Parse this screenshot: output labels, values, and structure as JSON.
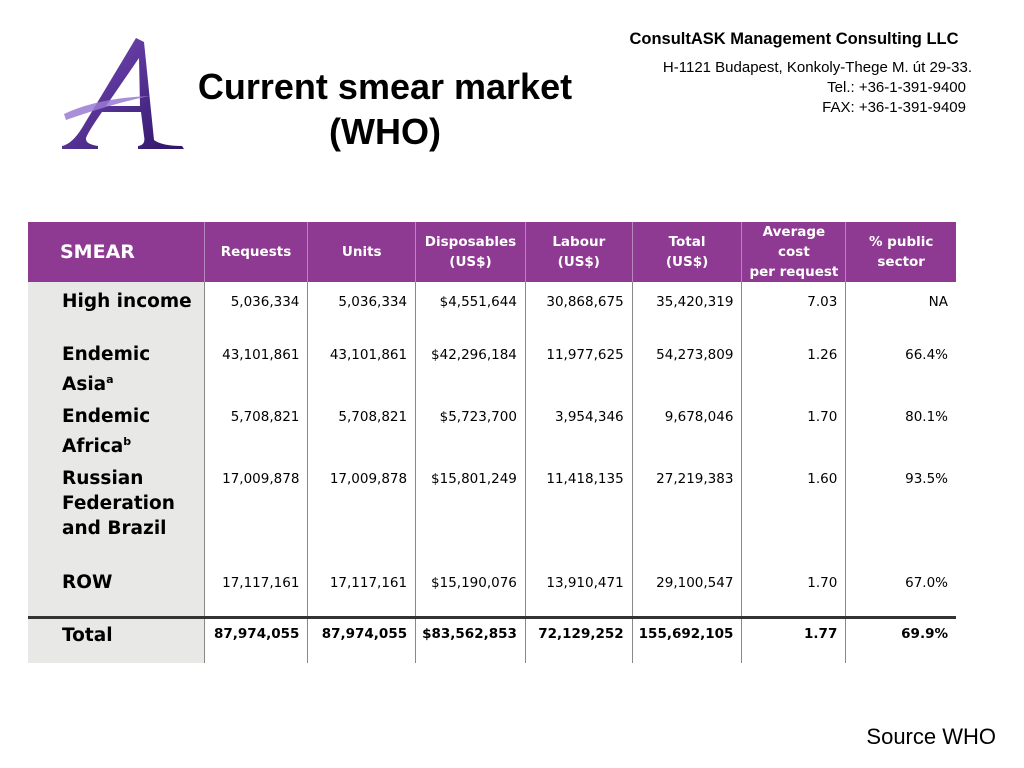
{
  "header": {
    "title_line1": "Current smear market",
    "title_line2": "(WHO)"
  },
  "company": {
    "name": "ConsultASK Management Consulting LLC",
    "address": "H-1121 Budapest, Konkoly-Thege M. út 29-33.",
    "phone": "Tel.:   +36-1-391-9400",
    "fax": "FAX: +36-1-391-9409"
  },
  "table": {
    "headers": {
      "smear": "SMEAR",
      "requests": "Requests",
      "units": "Units",
      "disposables_1": "Disposables",
      "disposables_2": "(US$)",
      "labour": "Labour (US$)",
      "total_1": "Total",
      "total_2": "(US$)",
      "avg_1": "Average cost",
      "avg_2": "per request",
      "public_1": "% public",
      "public_2": "sector"
    },
    "rows": [
      {
        "label": "High income",
        "sup": "",
        "requests": "5,036,334",
        "units": "5,036,334",
        "disposables": "$4,551,644",
        "labour": "30,868,675",
        "total": "35,420,319",
        "avg": "7.03",
        "public": "NA"
      },
      {
        "label": "Endemic Asia",
        "sup": "a",
        "requests": "43,101,861",
        "units": "43,101,861",
        "disposables": "$42,296,184",
        "labour": "11,977,625",
        "total": "54,273,809",
        "avg": "1.26",
        "public": "66.4%"
      },
      {
        "label": "Endemic Africa",
        "sup": "b",
        "requests": "5,708,821",
        "units": "5,708,821",
        "disposables": "$5,723,700",
        "labour": "3,954,346",
        "total": "9,678,046",
        "avg": "1.70",
        "public": "80.1%"
      },
      {
        "label_lines": [
          "Russian",
          "Federation",
          "and Brazil"
        ],
        "requests": "17,009,878",
        "units": "17,009,878",
        "disposables": "$15,801,249",
        "labour": "11,418,135",
        "total": "27,219,383",
        "avg": "1.60",
        "public": "93.5%"
      },
      {
        "label": "ROW",
        "sup": "",
        "requests": "17,117,161",
        "units": "17,117,161",
        "disposables": "$15,190,076",
        "labour": "13,910,471",
        "total": "29,100,547",
        "avg": "1.70",
        "public": "67.0%"
      }
    ],
    "total": {
      "label": "Total",
      "requests": "87,974,055",
      "units": "87,974,055",
      "disposables": "$83,562,853",
      "labour": "72,129,252",
      "total": "155,692,105",
      "avg": "1.77",
      "public": "69.9%"
    }
  },
  "source": "Source WHO",
  "colors": {
    "header_bg": "#8e3a92",
    "label_bg": "#e8e8e6",
    "logo_purple": "#5a2d91"
  },
  "logo": {
    "icon": "letter-a-logo-icon"
  }
}
